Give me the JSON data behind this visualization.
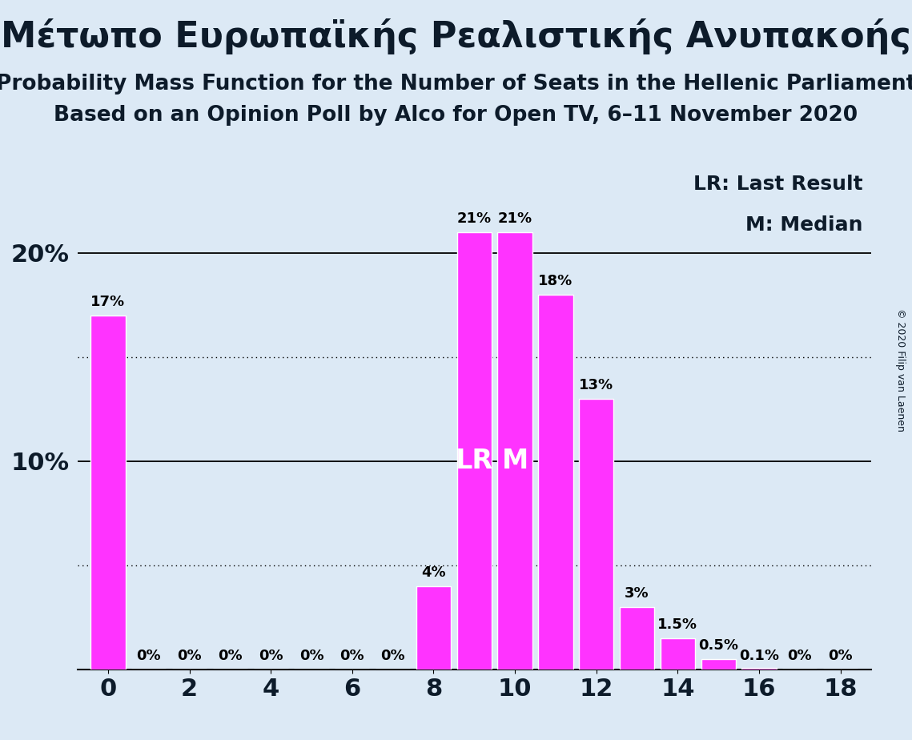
{
  "title_greek": "Μέτωπο Ευρωπαϊκής Ρεαλιστικής Ανυπακοής",
  "subtitle1": "Probability Mass Function for the Number of Seats in the Hellenic Parliament",
  "subtitle2": "Based on an Opinion Poll by Alco for Open TV, 6–11 November 2020",
  "copyright": "© 2020 Filip van Laenen",
  "legend_lr": "LR: Last Result",
  "legend_m": "M: Median",
  "seats": [
    0,
    1,
    2,
    3,
    4,
    5,
    6,
    7,
    8,
    9,
    10,
    11,
    12,
    13,
    14,
    15,
    16,
    17,
    18
  ],
  "probabilities": [
    0.17,
    0.0,
    0.0,
    0.0,
    0.0,
    0.0,
    0.0,
    0.0,
    0.04,
    0.21,
    0.21,
    0.18,
    0.13,
    0.03,
    0.015,
    0.005,
    0.001,
    0.0,
    0.0
  ],
  "bar_labels": [
    "17%",
    "0%",
    "0%",
    "0%",
    "0%",
    "0%",
    "0%",
    "0%",
    "4%",
    "21%",
    "21%",
    "18%",
    "13%",
    "3%",
    "1.5%",
    "0.5%",
    "0.1%",
    "0%",
    "0%"
  ],
  "bar_color": "#ff33ff",
  "background_color": "#dce9f5",
  "lr_seat": 9,
  "median_seat": 10,
  "lr_label": "LR",
  "median_label": "M",
  "ylim": [
    0,
    0.245
  ],
  "yticks": [
    0.1,
    0.2
  ],
  "ytick_labels": [
    "10%",
    "20%"
  ],
  "grid_lines_solid": [
    0.1,
    0.2
  ],
  "grid_lines_dotted": [
    0.05,
    0.15
  ],
  "title_fontsize": 32,
  "subtitle_fontsize": 19,
  "bar_label_fontsize": 13,
  "axis_tick_fontsize": 22,
  "inline_label_fontsize": 24,
  "legend_fontsize": 18,
  "copyright_fontsize": 9,
  "bar_width": 0.85
}
